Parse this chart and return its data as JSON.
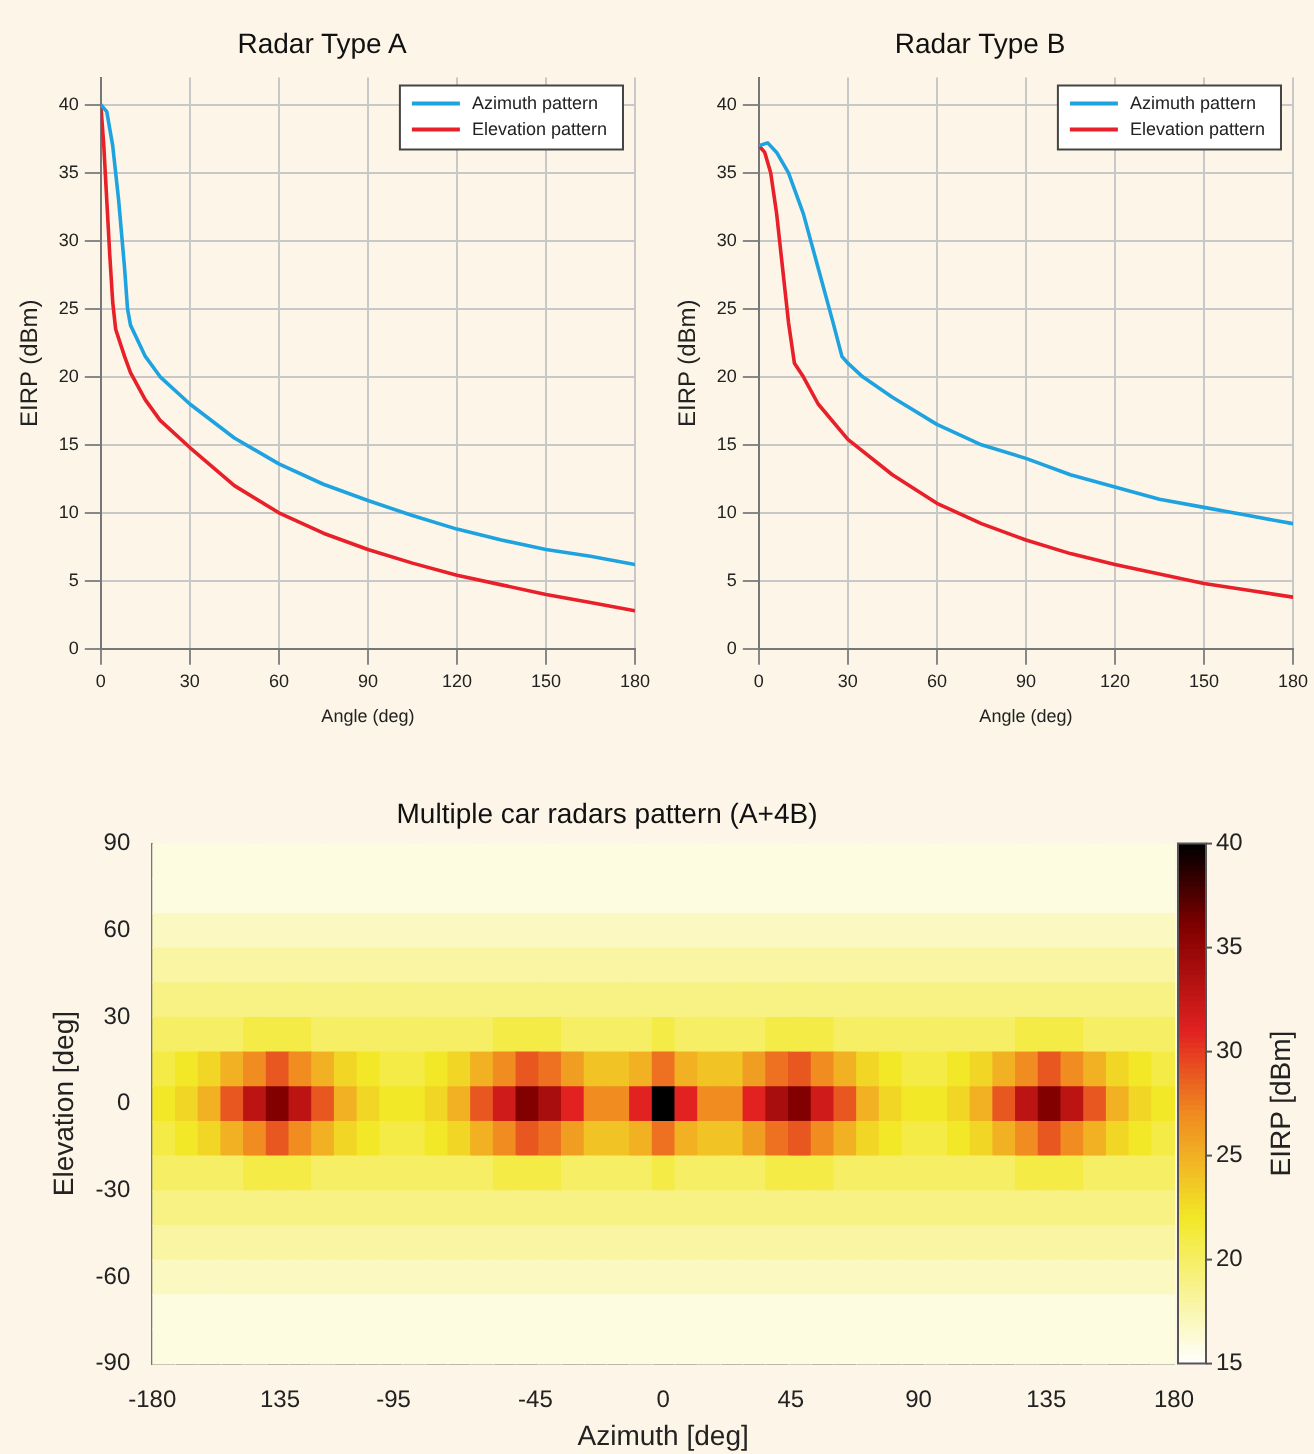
{
  "chart_data": [
    {
      "type": "line",
      "title": "Radar Type A",
      "xlabel": "Angle (deg)",
      "ylabel": "EIRP (dBm)",
      "xlim": [
        0,
        180
      ],
      "xticks": [
        0,
        30,
        60,
        90,
        120,
        150,
        180
      ],
      "ylim": [
        0,
        42
      ],
      "yticks": [
        0,
        5,
        10,
        15,
        20,
        25,
        30,
        35,
        40
      ],
      "grid": true,
      "legend": "top right",
      "marker": "none",
      "line_style": "solid",
      "series": [
        {
          "name": "Azimuth pattern",
          "color": "#1fa3e0",
          "x": [
            0,
            2,
            4,
            6,
            8,
            9,
            10,
            15,
            20,
            30,
            45,
            60,
            75,
            90,
            105,
            120,
            135,
            150,
            165,
            180
          ],
          "values": [
            40,
            39.5,
            37,
            33,
            28,
            25,
            23.8,
            21.5,
            20,
            18,
            15.5,
            13.6,
            12.1,
            10.9,
            9.8,
            8.8,
            8,
            7.3,
            6.8,
            6.2
          ]
        },
        {
          "name": "Elevation pattern",
          "color": "#e8202a",
          "x": [
            0,
            1,
            2,
            3,
            4,
            5,
            8,
            10,
            15,
            20,
            30,
            45,
            60,
            75,
            90,
            105,
            120,
            135,
            150,
            165,
            180
          ],
          "values": [
            40,
            37,
            33,
            29,
            25.5,
            23.5,
            21.5,
            20.3,
            18.3,
            16.8,
            14.8,
            12,
            10,
            8.5,
            7.3,
            6.3,
            5.4,
            4.7,
            4,
            3.4,
            2.8
          ]
        }
      ]
    },
    {
      "type": "line",
      "title": "Radar Type B",
      "xlabel": "Angle (deg)",
      "ylabel": "EIRP (dBm)",
      "xlim": [
        0,
        180
      ],
      "xticks": [
        0,
        30,
        60,
        90,
        120,
        150,
        180
      ],
      "ylim": [
        0,
        42
      ],
      "yticks": [
        0,
        5,
        10,
        15,
        20,
        25,
        30,
        35,
        40
      ],
      "grid": true,
      "legend": "top right",
      "marker": "none",
      "line_style": "solid",
      "series": [
        {
          "name": "Azimuth pattern",
          "color": "#1fa3e0",
          "x": [
            0,
            3,
            6,
            10,
            15,
            20,
            25,
            28,
            30,
            35,
            45,
            60,
            75,
            90,
            105,
            120,
            135,
            150,
            165,
            180
          ],
          "values": [
            37,
            37.2,
            36.5,
            35,
            32,
            28,
            24,
            21.5,
            21,
            20,
            18.5,
            16.5,
            15,
            14,
            12.8,
            11.9,
            11,
            10.4,
            9.8,
            9.2
          ]
        },
        {
          "name": "Elevation pattern",
          "color": "#e8202a",
          "x": [
            0,
            2,
            4,
            6,
            8,
            10,
            12,
            15,
            20,
            30,
            45,
            60,
            75,
            90,
            105,
            120,
            135,
            150,
            165,
            180
          ],
          "values": [
            37,
            36.5,
            35,
            32,
            28,
            24,
            21,
            20,
            18,
            15.4,
            12.8,
            10.7,
            9.2,
            8,
            7,
            6.2,
            5.5,
            4.8,
            4.3,
            3.8
          ]
        }
      ]
    },
    {
      "type": "heatmap",
      "title": "Multiple car radars pattern (A+4B)",
      "xlabel": "Azimuth [deg]",
      "ylabel": "Elevation [deg]",
      "clabel": "EIRP [dBm]",
      "xlim": [
        -180,
        180
      ],
      "xticks": [
        -180,
        {
          "value": -135,
          "label": "135"
        },
        -95,
        -45,
        0,
        45,
        90,
        135,
        180
      ],
      "ylim": [
        -90,
        90
      ],
      "yticks": [
        -90,
        -60,
        -30,
        0,
        30,
        60,
        90
      ],
      "clim": [
        15,
        40
      ],
      "cticks": [
        15,
        20,
        25,
        30,
        35,
        40
      ],
      "x": [
        -176,
        -168,
        -160,
        -152,
        -144,
        -136,
        -128,
        -120,
        -112,
        -104,
        -96,
        -88,
        -80,
        -72,
        -64,
        -56,
        -48,
        -40,
        -32,
        -24,
        -16,
        -8,
        0,
        8,
        16,
        24,
        32,
        40,
        48,
        56,
        64,
        72,
        80,
        88,
        96,
        104,
        112,
        120,
        128,
        136,
        144,
        152,
        160,
        168,
        176
      ],
      "y": [
        84,
        72,
        60,
        48,
        36,
        24,
        12,
        0,
        -12,
        -24,
        -36,
        -48,
        -60,
        -72,
        -84
      ],
      "cells": [
        [
          16,
          16,
          16,
          16,
          16,
          16,
          16,
          16,
          16,
          16,
          16,
          16,
          16,
          16,
          16,
          16,
          16,
          16,
          16,
          16,
          16,
          16,
          16,
          16,
          16,
          16,
          16,
          16,
          16,
          16,
          16,
          16,
          16,
          16,
          16,
          16,
          16,
          16,
          16,
          16,
          16,
          16,
          16,
          16,
          16
        ],
        [
          16,
          16,
          16,
          16,
          16,
          16,
          16,
          16,
          16,
          16,
          16,
          16,
          16,
          16,
          16,
          16,
          16,
          16,
          16,
          16,
          16,
          16,
          16,
          16,
          16,
          16,
          16,
          16,
          16,
          16,
          16,
          16,
          16,
          16,
          16,
          16,
          16,
          16,
          16,
          16,
          16,
          16,
          16,
          16,
          16
        ],
        [
          17,
          17,
          17,
          17,
          17,
          17,
          17,
          17,
          17,
          17,
          17,
          17,
          17,
          17,
          17,
          17,
          17,
          17,
          17,
          17,
          17,
          17,
          17,
          17,
          17,
          17,
          17,
          17,
          17,
          17,
          17,
          17,
          17,
          17,
          17,
          17,
          17,
          17,
          17,
          17,
          17,
          17,
          17,
          17,
          17
        ],
        [
          18,
          18,
          18,
          18,
          18,
          18,
          18,
          18,
          18,
          18,
          18,
          18,
          18,
          18,
          18,
          18,
          18,
          18,
          18,
          18,
          18,
          18,
          18,
          18,
          18,
          18,
          18,
          18,
          18,
          18,
          18,
          18,
          18,
          18,
          18,
          18,
          18,
          18,
          18,
          18,
          18,
          18,
          18,
          18,
          18
        ],
        [
          19,
          19,
          19,
          19,
          19,
          19,
          19,
          19,
          19,
          19,
          19,
          19,
          19,
          19,
          19,
          19,
          19,
          19,
          19,
          19,
          19,
          19,
          19,
          19,
          19,
          19,
          19,
          19,
          19,
          19,
          19,
          19,
          19,
          19,
          19,
          19,
          19,
          19,
          19,
          19,
          19,
          19,
          19,
          19,
          19
        ],
        [
          20,
          20,
          20,
          20,
          21,
          21,
          21,
          20,
          20,
          20,
          20,
          20,
          20,
          20,
          20,
          21,
          21,
          21,
          20,
          20,
          20,
          20,
          21,
          20,
          20,
          20,
          20,
          21,
          21,
          21,
          20,
          20,
          20,
          20,
          20,
          20,
          20,
          20,
          21,
          21,
          21,
          20,
          20,
          20,
          20
        ],
        [
          21,
          22,
          23,
          25,
          27,
          29,
          27,
          25,
          23,
          22,
          21,
          21,
          22,
          23,
          25,
          27,
          29,
          28,
          26,
          24,
          24,
          25,
          28,
          25,
          24,
          24,
          26,
          28,
          29,
          27,
          25,
          23,
          22,
          21,
          21,
          22,
          23,
          25,
          27,
          29,
          27,
          25,
          23,
          22,
          21
        ],
        [
          22,
          23,
          25,
          29,
          33,
          36,
          33,
          29,
          25,
          23,
          22,
          22,
          23,
          25,
          29,
          32,
          36,
          34,
          31,
          27,
          27,
          31,
          40,
          31,
          27,
          27,
          31,
          34,
          36,
          32,
          29,
          25,
          23,
          22,
          22,
          23,
          25,
          29,
          33,
          36,
          33,
          29,
          25,
          23,
          22
        ],
        [
          21,
          22,
          23,
          25,
          27,
          29,
          27,
          25,
          23,
          22,
          21,
          21,
          22,
          23,
          25,
          27,
          29,
          28,
          26,
          24,
          24,
          25,
          28,
          25,
          24,
          24,
          26,
          28,
          29,
          27,
          25,
          23,
          22,
          21,
          21,
          22,
          23,
          25,
          27,
          29,
          27,
          25,
          23,
          22,
          21
        ],
        [
          20,
          20,
          20,
          20,
          21,
          21,
          21,
          20,
          20,
          20,
          20,
          20,
          20,
          20,
          20,
          21,
          21,
          21,
          20,
          20,
          20,
          20,
          21,
          20,
          20,
          20,
          20,
          21,
          21,
          21,
          20,
          20,
          20,
          20,
          20,
          20,
          20,
          20,
          21,
          21,
          21,
          20,
          20,
          20,
          20
        ],
        [
          19,
          19,
          19,
          19,
          19,
          19,
          19,
          19,
          19,
          19,
          19,
          19,
          19,
          19,
          19,
          19,
          19,
          19,
          19,
          19,
          19,
          19,
          19,
          19,
          19,
          19,
          19,
          19,
          19,
          19,
          19,
          19,
          19,
          19,
          19,
          19,
          19,
          19,
          19,
          19,
          19,
          19,
          19,
          19,
          19
        ],
        [
          18,
          18,
          18,
          18,
          18,
          18,
          18,
          18,
          18,
          18,
          18,
          18,
          18,
          18,
          18,
          18,
          18,
          18,
          18,
          18,
          18,
          18,
          18,
          18,
          18,
          18,
          18,
          18,
          18,
          18,
          18,
          18,
          18,
          18,
          18,
          18,
          18,
          18,
          18,
          18,
          18,
          18,
          18,
          18,
          18
        ],
        [
          17,
          17,
          17,
          17,
          17,
          17,
          17,
          17,
          17,
          17,
          17,
          17,
          17,
          17,
          17,
          17,
          17,
          17,
          17,
          17,
          17,
          17,
          17,
          17,
          17,
          17,
          17,
          17,
          17,
          17,
          17,
          17,
          17,
          17,
          17,
          17,
          17,
          17,
          17,
          17,
          17,
          17,
          17,
          17,
          17
        ],
        [
          16,
          16,
          16,
          16,
          16,
          16,
          16,
          16,
          16,
          16,
          16,
          16,
          16,
          16,
          16,
          16,
          16,
          16,
          16,
          16,
          16,
          16,
          16,
          16,
          16,
          16,
          16,
          16,
          16,
          16,
          16,
          16,
          16,
          16,
          16,
          16,
          16,
          16,
          16,
          16,
          16,
          16,
          16,
          16,
          16
        ],
        [
          16,
          16,
          16,
          16,
          16,
          16,
          16,
          16,
          16,
          16,
          16,
          16,
          16,
          16,
          16,
          16,
          16,
          16,
          16,
          16,
          16,
          16,
          16,
          16,
          16,
          16,
          16,
          16,
          16,
          16,
          16,
          16,
          16,
          16,
          16,
          16,
          16,
          16,
          16,
          16,
          16,
          16,
          16,
          16,
          16
        ]
      ]
    }
  ]
}
